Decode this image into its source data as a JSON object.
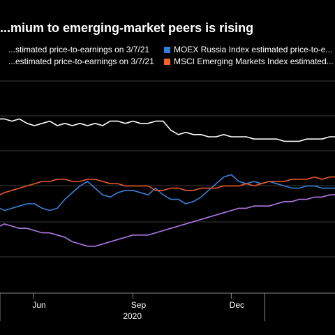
{
  "chart_data": {
    "type": "line",
    "title": "...mium to emerging-market peers is rising",
    "legend": [
      {
        "label": "...stimated price-to-earnings on 3/7/21",
        "color": "#000000",
        "series": 3
      },
      {
        "label": "...estimated price-to-earnings on 3/7/21",
        "color": "#000000",
        "series": 2
      },
      {
        "label": "MOEX Russia Index estimated price-to-e...",
        "color": "#2d7fd8",
        "series": 0
      },
      {
        "label": "MSCI Emerging Markets Index estimated...",
        "color": "#f0622a",
        "series": 1
      }
    ],
    "x_ticks": [
      "Jun",
      "Sep",
      "Dec"
    ],
    "x_year": "2020",
    "x_range": [
      "2020-05-01",
      "2021-03-07"
    ],
    "y_range": [
      0,
      100
    ],
    "grid": true,
    "series": [
      {
        "color": "#3b82d6",
        "points": [
          [
            "2020-05-01",
            38
          ],
          [
            "2020-05-05",
            37
          ],
          [
            "2020-05-12",
            38
          ],
          [
            "2020-05-19",
            39
          ],
          [
            "2020-05-26",
            40
          ],
          [
            "2020-06-02",
            40
          ],
          [
            "2020-06-09",
            38
          ],
          [
            "2020-06-16",
            37
          ],
          [
            "2020-06-23",
            38
          ],
          [
            "2020-06-30",
            42
          ],
          [
            "2020-07-07",
            45
          ],
          [
            "2020-07-14",
            48
          ],
          [
            "2020-07-21",
            50
          ],
          [
            "2020-07-28",
            47
          ],
          [
            "2020-08-04",
            44
          ],
          [
            "2020-08-11",
            43
          ],
          [
            "2020-08-18",
            45
          ],
          [
            "2020-08-25",
            46
          ],
          [
            "2020-09-01",
            46
          ],
          [
            "2020-09-08",
            45
          ],
          [
            "2020-09-15",
            44
          ],
          [
            "2020-09-22",
            47
          ],
          [
            "2020-09-29",
            44
          ],
          [
            "2020-10-06",
            42
          ],
          [
            "2020-10-13",
            42
          ],
          [
            "2020-10-20",
            40
          ],
          [
            "2020-10-27",
            41
          ],
          [
            "2020-11-03",
            43
          ],
          [
            "2020-11-10",
            46
          ],
          [
            "2020-11-17",
            49
          ],
          [
            "2020-11-24",
            52
          ],
          [
            "2020-12-01",
            53
          ],
          [
            "2020-12-08",
            50
          ],
          [
            "2020-12-15",
            49
          ],
          [
            "2020-12-22",
            50
          ],
          [
            "2020-12-29",
            49
          ],
          [
            "2021-01-05",
            50
          ],
          [
            "2021-01-12",
            49
          ],
          [
            "2021-01-19",
            48
          ],
          [
            "2021-01-26",
            47
          ],
          [
            "2021-02-02",
            47
          ],
          [
            "2021-02-09",
            48
          ],
          [
            "2021-02-16",
            48
          ],
          [
            "2021-02-23",
            47
          ],
          [
            "2021-03-02",
            47
          ],
          [
            "2021-03-07",
            47
          ]
        ]
      },
      {
        "color": "#e8582a",
        "points": [
          [
            "2020-05-01",
            44
          ],
          [
            "2020-05-05",
            45
          ],
          [
            "2020-05-12",
            46
          ],
          [
            "2020-05-19",
            47
          ],
          [
            "2020-05-26",
            48
          ],
          [
            "2020-06-02",
            49
          ],
          [
            "2020-06-09",
            50
          ],
          [
            "2020-06-16",
            50
          ],
          [
            "2020-06-23",
            51
          ],
          [
            "2020-06-30",
            51
          ],
          [
            "2020-07-07",
            50
          ],
          [
            "2020-07-14",
            50
          ],
          [
            "2020-07-21",
            51
          ],
          [
            "2020-07-28",
            51
          ],
          [
            "2020-08-04",
            50
          ],
          [
            "2020-08-11",
            49
          ],
          [
            "2020-08-18",
            49
          ],
          [
            "2020-08-25",
            48
          ],
          [
            "2020-09-01",
            48
          ],
          [
            "2020-09-08",
            48
          ],
          [
            "2020-09-15",
            48
          ],
          [
            "2020-09-22",
            46
          ],
          [
            "2020-09-29",
            46
          ],
          [
            "2020-10-06",
            47
          ],
          [
            "2020-10-13",
            47
          ],
          [
            "2020-10-20",
            46
          ],
          [
            "2020-10-27",
            46
          ],
          [
            "2020-11-03",
            47
          ],
          [
            "2020-11-10",
            47
          ],
          [
            "2020-11-17",
            47
          ],
          [
            "2020-11-24",
            48
          ],
          [
            "2020-12-01",
            48
          ],
          [
            "2020-12-08",
            48
          ],
          [
            "2020-12-15",
            49
          ],
          [
            "2020-12-22",
            48
          ],
          [
            "2020-12-29",
            49
          ],
          [
            "2021-01-05",
            50
          ],
          [
            "2021-01-12",
            50
          ],
          [
            "2021-01-19",
            50
          ],
          [
            "2021-01-26",
            51
          ],
          [
            "2021-02-02",
            51
          ],
          [
            "2021-02-09",
            51
          ],
          [
            "2021-02-16",
            52
          ],
          [
            "2021-02-23",
            51
          ],
          [
            "2021-03-02",
            52
          ],
          [
            "2021-03-07",
            52
          ]
        ]
      },
      {
        "color": "#b07ae8",
        "points": [
          [
            "2020-05-01",
            30
          ],
          [
            "2020-05-05",
            31
          ],
          [
            "2020-05-12",
            30
          ],
          [
            "2020-05-19",
            29
          ],
          [
            "2020-05-26",
            29
          ],
          [
            "2020-06-02",
            28
          ],
          [
            "2020-06-09",
            27
          ],
          [
            "2020-06-16",
            27
          ],
          [
            "2020-06-23",
            26
          ],
          [
            "2020-06-30",
            25
          ],
          [
            "2020-07-07",
            23
          ],
          [
            "2020-07-14",
            22
          ],
          [
            "2020-07-21",
            21
          ],
          [
            "2020-07-28",
            21
          ],
          [
            "2020-08-04",
            22
          ],
          [
            "2020-08-11",
            23
          ],
          [
            "2020-08-18",
            24
          ],
          [
            "2020-08-25",
            25
          ],
          [
            "2020-09-01",
            26
          ],
          [
            "2020-09-08",
            26
          ],
          [
            "2020-09-15",
            26
          ],
          [
            "2020-09-22",
            27
          ],
          [
            "2020-09-29",
            28
          ],
          [
            "2020-10-06",
            29
          ],
          [
            "2020-10-13",
            30
          ],
          [
            "2020-10-20",
            31
          ],
          [
            "2020-10-27",
            32
          ],
          [
            "2020-11-03",
            33
          ],
          [
            "2020-11-10",
            34
          ],
          [
            "2020-11-17",
            35
          ],
          [
            "2020-11-24",
            36
          ],
          [
            "2020-12-01",
            37
          ],
          [
            "2020-12-08",
            38
          ],
          [
            "2020-12-15",
            38
          ],
          [
            "2020-12-22",
            39
          ],
          [
            "2020-12-29",
            39
          ],
          [
            "2021-01-05",
            39
          ],
          [
            "2021-01-12",
            40
          ],
          [
            "2021-01-19",
            41
          ],
          [
            "2021-01-26",
            41
          ],
          [
            "2021-02-02",
            42
          ],
          [
            "2021-02-09",
            42
          ],
          [
            "2021-02-16",
            43
          ],
          [
            "2021-02-23",
            43
          ],
          [
            "2021-03-02",
            44
          ],
          [
            "2021-03-07",
            44
          ]
        ]
      },
      {
        "color": "#ffffff",
        "points": [
          [
            "2020-05-01",
            78
          ],
          [
            "2020-05-05",
            78
          ],
          [
            "2020-05-12",
            77
          ],
          [
            "2020-05-19",
            78
          ],
          [
            "2020-05-26",
            76
          ],
          [
            "2020-06-02",
            75
          ],
          [
            "2020-06-09",
            76
          ],
          [
            "2020-06-16",
            77
          ],
          [
            "2020-06-23",
            75
          ],
          [
            "2020-06-30",
            76
          ],
          [
            "2020-07-07",
            75
          ],
          [
            "2020-07-14",
            76
          ],
          [
            "2020-07-21",
            75
          ],
          [
            "2020-07-28",
            76
          ],
          [
            "2020-08-04",
            75
          ],
          [
            "2020-08-11",
            77
          ],
          [
            "2020-08-18",
            77
          ],
          [
            "2020-08-25",
            76
          ],
          [
            "2020-09-01",
            77
          ],
          [
            "2020-09-08",
            76
          ],
          [
            "2020-09-15",
            76
          ],
          [
            "2020-09-22",
            77
          ],
          [
            "2020-09-29",
            77
          ],
          [
            "2020-10-06",
            73
          ],
          [
            "2020-10-13",
            71
          ],
          [
            "2020-10-20",
            72
          ],
          [
            "2020-10-27",
            71
          ],
          [
            "2020-11-03",
            71
          ],
          [
            "2020-11-10",
            70
          ],
          [
            "2020-11-17",
            70
          ],
          [
            "2020-11-24",
            71
          ],
          [
            "2020-12-01",
            70
          ],
          [
            "2020-12-08",
            70
          ],
          [
            "2020-12-15",
            70
          ],
          [
            "2020-12-22",
            69
          ],
          [
            "2020-12-29",
            69
          ],
          [
            "2021-01-05",
            69
          ],
          [
            "2021-01-12",
            69
          ],
          [
            "2021-01-19",
            68
          ],
          [
            "2021-01-26",
            68
          ],
          [
            "2021-02-02",
            68
          ],
          [
            "2021-02-09",
            69
          ],
          [
            "2021-02-16",
            69
          ],
          [
            "2021-02-23",
            69
          ],
          [
            "2021-03-02",
            70
          ],
          [
            "2021-03-07",
            70
          ]
        ]
      }
    ]
  }
}
